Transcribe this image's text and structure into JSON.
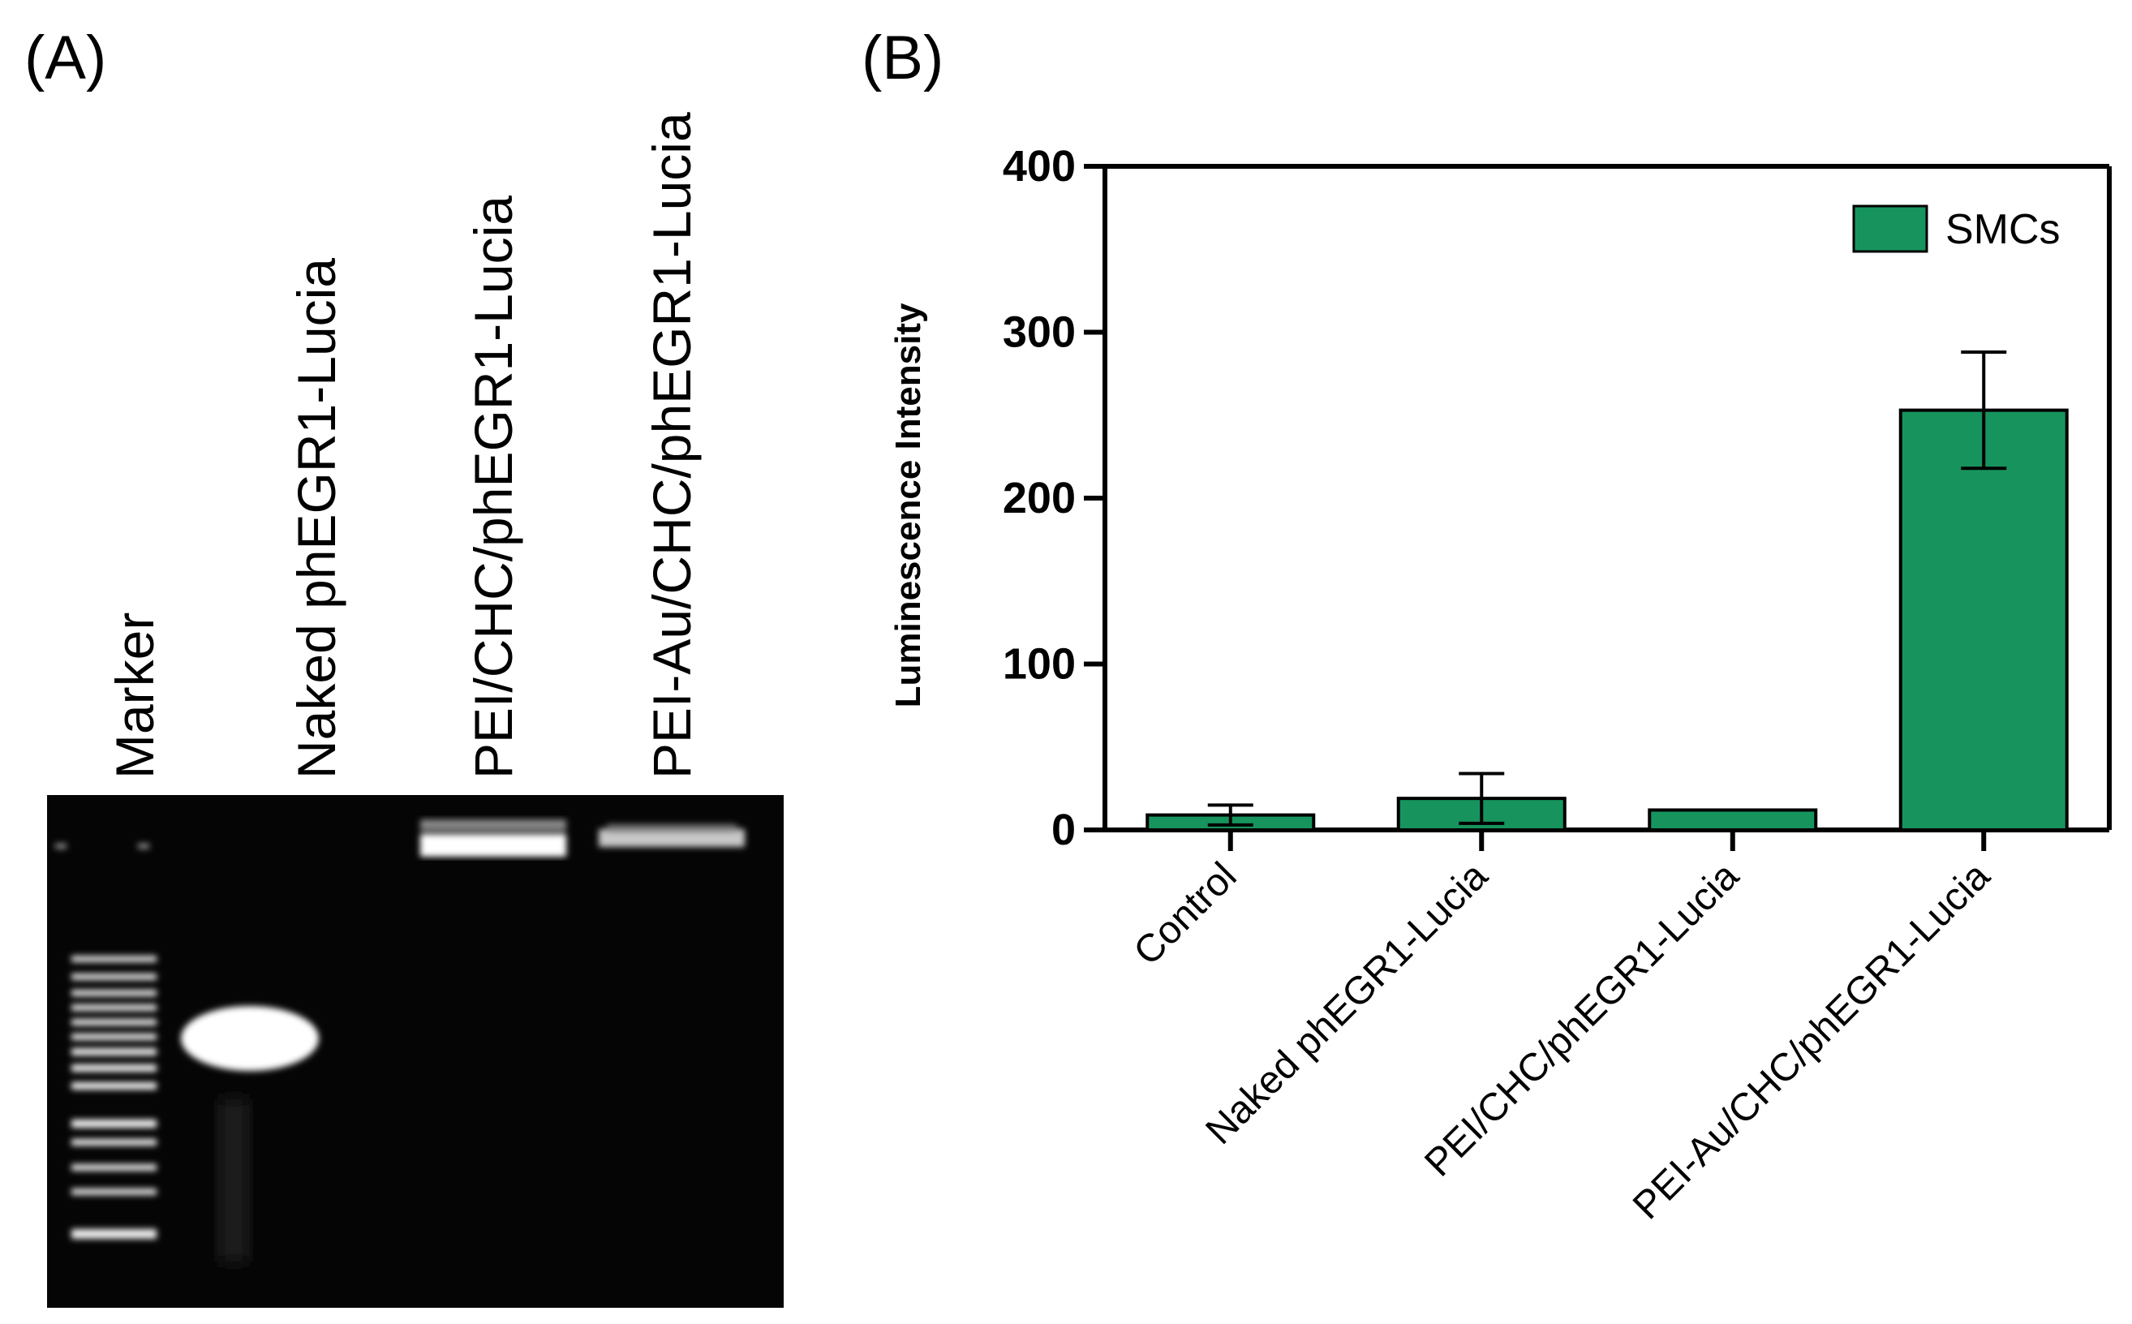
{
  "panel_a": {
    "label": "(A)",
    "lanes": [
      "Marker",
      "Naked phEGR1-Lucia",
      "PEI/CHC/phEGR1-Lucia",
      "PEI-Au/CHC/phEGR1-Lucia"
    ]
  },
  "panel_b": {
    "label": "(B)"
  },
  "colors": {
    "bar": "#17945e",
    "gel_bg": "#050505"
  },
  "chart_data": {
    "type": "bar",
    "title": "",
    "xlabel": "",
    "ylabel": "Luminescence Intensity",
    "categories": [
      "Control",
      "Naked phEGR1-Lucia",
      "PEI/CHC/phEGR1-Lucia",
      "PEI-Au/CHC/phEGR1-Lucia"
    ],
    "series": [
      {
        "name": "SMCs",
        "values": [
          9,
          19,
          12,
          253
        ],
        "error": [
          6,
          15,
          0,
          35
        ]
      }
    ],
    "ylim": [
      0,
      400
    ],
    "yticks": [
      "0",
      "100",
      "200",
      "300",
      "400"
    ],
    "legend": "top-right",
    "grid": false
  }
}
